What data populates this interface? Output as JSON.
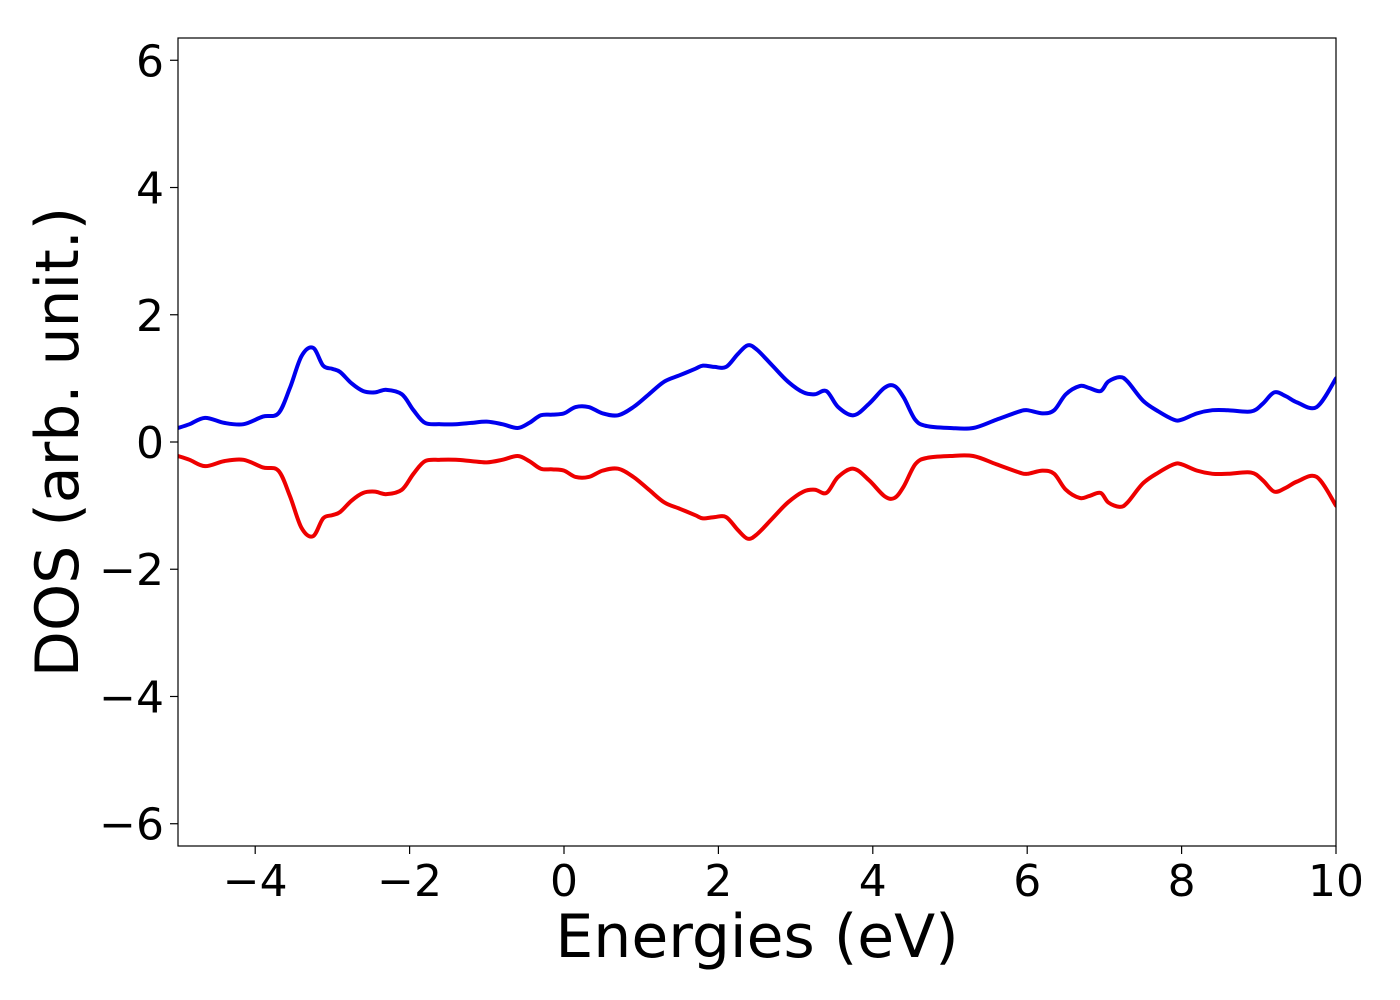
{
  "chart_data": {
    "type": "line",
    "title": "",
    "xlabel": "Energies (eV)",
    "ylabel": "DOS (arb. unit.)",
    "xlim": [
      -5,
      10
    ],
    "ylim": [
      -6.35,
      6.35
    ],
    "grid": false,
    "legend": "none",
    "x_ticks": [
      -4,
      -2,
      0,
      2,
      4,
      6,
      8,
      10
    ],
    "x_tick_labels": [
      "−4",
      "−2",
      "0",
      "2",
      "4",
      "6",
      "8",
      "10"
    ],
    "y_ticks": [
      -6,
      -4,
      -2,
      0,
      2,
      4,
      6
    ],
    "y_tick_labels": [
      "−6",
      "−4",
      "−2",
      "0",
      "2",
      "4",
      "6"
    ],
    "x": [
      -5.0,
      -4.85,
      -4.65,
      -4.4,
      -4.15,
      -3.9,
      -3.7,
      -3.55,
      -3.4,
      -3.25,
      -3.12,
      -3.0,
      -2.9,
      -2.75,
      -2.6,
      -2.45,
      -2.3,
      -2.1,
      -1.95,
      -1.8,
      -1.6,
      -1.4,
      -1.2,
      -1.0,
      -0.8,
      -0.6,
      -0.45,
      -0.3,
      -0.15,
      0.0,
      0.15,
      0.32,
      0.5,
      0.7,
      0.9,
      1.1,
      1.3,
      1.5,
      1.7,
      1.8,
      1.95,
      2.1,
      2.25,
      2.38,
      2.5,
      2.7,
      2.9,
      3.1,
      3.25,
      3.4,
      3.55,
      3.75,
      3.95,
      4.15,
      4.28,
      4.4,
      4.55,
      4.7,
      5.0,
      5.3,
      5.6,
      5.9,
      6.0,
      6.2,
      6.35,
      6.5,
      6.68,
      6.8,
      6.95,
      7.05,
      7.2,
      7.3,
      7.5,
      7.7,
      7.9,
      8.0,
      8.2,
      8.4,
      8.6,
      8.9,
      9.05,
      9.2,
      9.35,
      9.5,
      9.75,
      10.0
    ],
    "series": [
      {
        "color": "#0000ee",
        "values": [
          0.22,
          0.28,
          0.38,
          0.3,
          0.28,
          0.4,
          0.45,
          0.85,
          1.35,
          1.48,
          1.2,
          1.15,
          1.1,
          0.92,
          0.8,
          0.78,
          0.82,
          0.75,
          0.5,
          0.3,
          0.28,
          0.28,
          0.3,
          0.32,
          0.28,
          0.22,
          0.3,
          0.42,
          0.43,
          0.45,
          0.55,
          0.55,
          0.45,
          0.42,
          0.55,
          0.75,
          0.95,
          1.05,
          1.15,
          1.2,
          1.18,
          1.18,
          1.38,
          1.52,
          1.45,
          1.2,
          0.95,
          0.78,
          0.75,
          0.8,
          0.55,
          0.42,
          0.6,
          0.85,
          0.88,
          0.7,
          0.35,
          0.25,
          0.22,
          0.22,
          0.35,
          0.48,
          0.5,
          0.45,
          0.5,
          0.75,
          0.88,
          0.85,
          0.8,
          0.95,
          1.02,
          0.95,
          0.65,
          0.48,
          0.35,
          0.35,
          0.45,
          0.5,
          0.5,
          0.48,
          0.6,
          0.78,
          0.72,
          0.62,
          0.55,
          1.0
        ]
      },
      {
        "color": "#ee0000",
        "values": [
          -0.22,
          -0.28,
          -0.38,
          -0.3,
          -0.28,
          -0.4,
          -0.45,
          -0.85,
          -1.35,
          -1.48,
          -1.2,
          -1.15,
          -1.1,
          -0.92,
          -0.8,
          -0.78,
          -0.82,
          -0.75,
          -0.5,
          -0.3,
          -0.28,
          -0.28,
          -0.3,
          -0.32,
          -0.28,
          -0.22,
          -0.3,
          -0.42,
          -0.43,
          -0.45,
          -0.55,
          -0.55,
          -0.45,
          -0.42,
          -0.55,
          -0.75,
          -0.95,
          -1.05,
          -1.15,
          -1.2,
          -1.18,
          -1.18,
          -1.38,
          -1.52,
          -1.45,
          -1.2,
          -0.95,
          -0.78,
          -0.75,
          -0.8,
          -0.55,
          -0.42,
          -0.6,
          -0.85,
          -0.88,
          -0.7,
          -0.35,
          -0.25,
          -0.22,
          -0.22,
          -0.35,
          -0.48,
          -0.5,
          -0.45,
          -0.5,
          -0.75,
          -0.88,
          -0.85,
          -0.8,
          -0.95,
          -1.02,
          -0.95,
          -0.65,
          -0.48,
          -0.35,
          -0.35,
          -0.45,
          -0.5,
          -0.5,
          -0.48,
          -0.6,
          -0.78,
          -0.72,
          -0.62,
          -0.55,
          -1.0
        ]
      }
    ]
  }
}
